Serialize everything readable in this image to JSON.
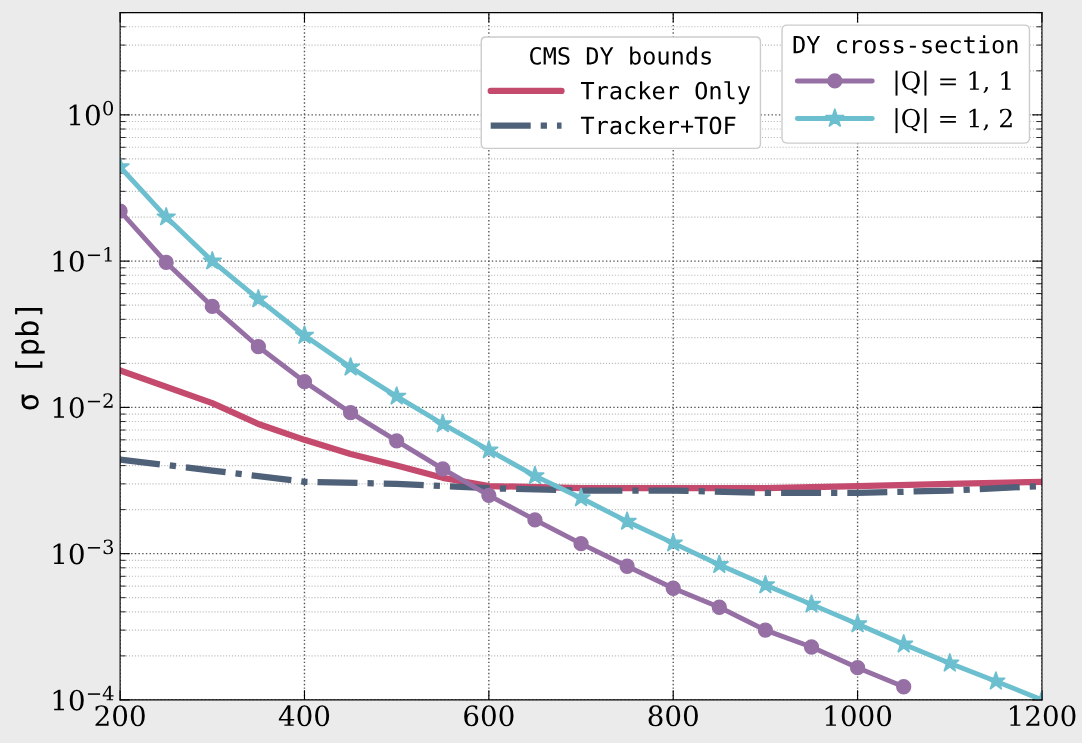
{
  "chart_data": {
    "type": "line",
    "ylabel": "σ [pb]",
    "log": "y",
    "grid": true,
    "legend": "top right",
    "annotations": [
      "CMS DY bounds",
      "DY cross-section"
    ],
    "xlim": [
      200,
      1200
    ],
    "xticks": [
      200,
      400,
      600,
      800,
      1000,
      1200
    ],
    "ylim": [
      0.0001,
      5
    ],
    "yticks": [
      {
        "value": 0.0001,
        "label": "10$^{−4}$"
      },
      {
        "value": 0.001,
        "label": "10$^{−3}$"
      },
      {
        "value": 0.01,
        "label": "10$^{−2}$"
      },
      {
        "value": 0.1,
        "label": "10$^{−1}$"
      },
      {
        "value": 1,
        "label": "10$^{0}$"
      }
    ],
    "series": [
      {
        "name": "Tracker Only",
        "color": "#c44b6e",
        "line_style": "solid",
        "marker": "none",
        "x": [
          200,
          300,
          350,
          400,
          450,
          500,
          550,
          600,
          700,
          800,
          900,
          1000,
          1100,
          1200
        ],
        "values": [
          0.0179,
          0.0107,
          0.0077,
          0.006,
          0.0048,
          0.004,
          0.0033,
          0.0029,
          0.0028,
          0.0028,
          0.0028,
          0.0029,
          0.003,
          0.0031
        ]
      },
      {
        "name": "Tracker+TOF",
        "color": "#4f6079",
        "line_style": "dashdot",
        "marker": "none",
        "x": [
          200,
          300,
          400,
          500,
          600,
          700,
          800,
          900,
          1000,
          1100,
          1200
        ],
        "values": [
          0.0044,
          0.0037,
          0.0031,
          0.003,
          0.0028,
          0.0027,
          0.0027,
          0.0026,
          0.0026,
          0.0027,
          0.0029
        ]
      },
      {
        "name": "|Q| = 1, 1",
        "color": "#9670a5",
        "line_style": "solid",
        "marker": "circle",
        "x": [
          200,
          250,
          300,
          350,
          400,
          450,
          500,
          550,
          600,
          650,
          700,
          750,
          800,
          850,
          900,
          950,
          1000,
          1050
        ],
        "values": [
          0.22,
          0.098,
          0.049,
          0.026,
          0.015,
          0.0092,
          0.0059,
          0.0038,
          0.0025,
          0.0017,
          0.00117,
          0.00082,
          0.00058,
          0.00043,
          0.0003,
          0.00023,
          0.000166,
          0.000123
        ]
      },
      {
        "name": "|Q| = 1, 2",
        "color": "#6cbfcf",
        "line_style": "solid",
        "marker": "star",
        "x": [
          200,
          250,
          300,
          350,
          400,
          450,
          500,
          550,
          600,
          650,
          700,
          750,
          800,
          850,
          900,
          950,
          1000,
          1050,
          1100,
          1150,
          1200
        ],
        "values": [
          0.44,
          0.2,
          0.1,
          0.055,
          0.031,
          0.0188,
          0.0119,
          0.0077,
          0.0051,
          0.0034,
          0.0024,
          0.00166,
          0.00118,
          0.00084,
          0.00061,
          0.00045,
          0.00033,
          0.00024,
          0.000178,
          0.000134,
          0.0001
        ]
      }
    ]
  }
}
